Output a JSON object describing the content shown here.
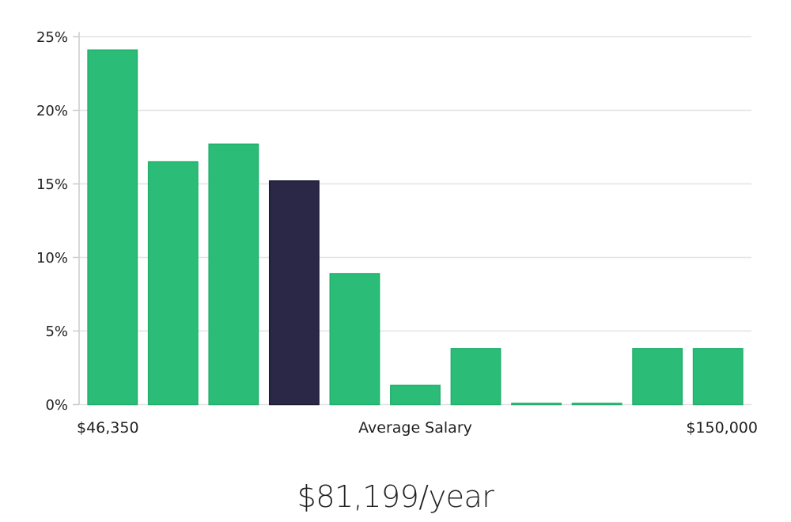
{
  "chart_data": {
    "type": "bar",
    "y_tick_labels": [
      "0%",
      "5%",
      "10%",
      "15%",
      "20%",
      "25%"
    ],
    "y_ticks": [
      0,
      5,
      10,
      15,
      20,
      25
    ],
    "ylim": [
      0,
      25
    ],
    "grid": true,
    "values": [
      24.1,
      16.5,
      17.7,
      15.2,
      8.9,
      1.3,
      3.8,
      0,
      0,
      3.8,
      3.8
    ],
    "highlight_index": 3,
    "colors": {
      "bar": "#2bbd77",
      "bar_highlight": "#2a2747",
      "grid": "#e3e3e3",
      "axis": "#cccccc"
    },
    "x_min_label": "$46,350",
    "xlabel": "Average Salary",
    "x_max_label": "$150,000"
  },
  "salary_text": "$81,199/year"
}
